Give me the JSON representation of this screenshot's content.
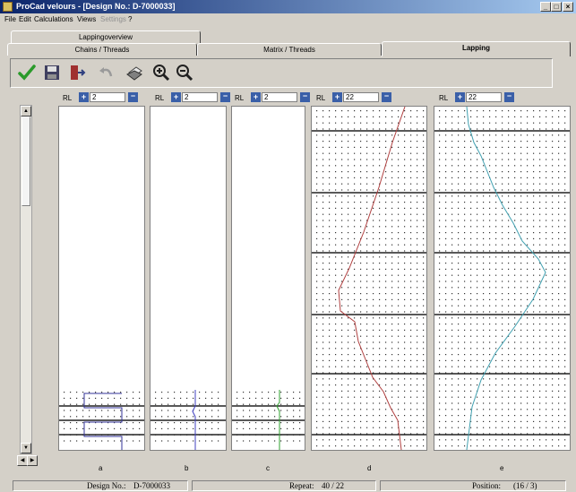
{
  "window": {
    "title": "ProCad velours - [Design No.: D-7000033]"
  },
  "window_controls": {
    "minimize": "_",
    "maximize": "□",
    "close": "×"
  },
  "menu": {
    "file": "File",
    "edit": "Edit",
    "calculations": "Calculations",
    "views": "Views",
    "settings": "Settings",
    "help": "?"
  },
  "tabs": {
    "lappingoverview": "Lappingoverview",
    "chains_threads": "Chains / Threads",
    "matrix_threads": "Matrix / Threads",
    "lapping": "Lapping"
  },
  "toolbar": {
    "icons": [
      "check-icon",
      "save-icon",
      "exit-icon",
      "undo-icon",
      "print-icon",
      "zoom-in-icon",
      "zoom-out-icon"
    ]
  },
  "columns": [
    {
      "rl": "RL",
      "value": "2",
      "label": "a",
      "color": "#333399"
    },
    {
      "rl": "RL",
      "value": "2",
      "label": "b",
      "color": "#4040c0"
    },
    {
      "rl": "RL",
      "value": "2",
      "label": "c",
      "color": "#30a030"
    },
    {
      "rl": "RL",
      "value": "22",
      "label": "d",
      "color": "#b04040"
    },
    {
      "rl": "RL",
      "value": "22",
      "label": "e",
      "color": "#40a0b0"
    }
  ],
  "spin": {
    "up": "+",
    "down": "−"
  },
  "status": {
    "design_label": "Design No.:",
    "design_value": "D-7000033",
    "repeat_label": "Repeat:",
    "repeat_value": "40 / 22",
    "position_label": "Position:",
    "position_value": "(16 / 3)"
  },
  "colors": {
    "titlebar_start": "#0a246a",
    "titlebar_end": "#a6caf0",
    "spin_button": "#3a5fa8"
  }
}
